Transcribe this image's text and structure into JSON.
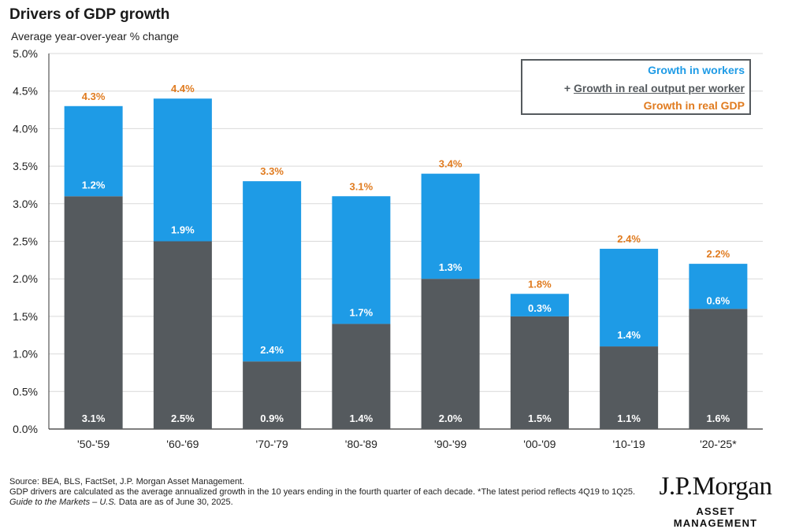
{
  "title": "Drivers of GDP growth",
  "subtitle": "Average year-over-year % change",
  "colors": {
    "workers": "#1e9be6",
    "output": "#555a5e",
    "gdp": "#e07b1f",
    "grid": "#d9d9d9"
  },
  "legend": {
    "workers": "Growth in workers",
    "output_prefix": "+ ",
    "output": "Growth in real output per worker",
    "gdp": "Growth in real GDP"
  },
  "chart_data": {
    "type": "bar",
    "stacked": true,
    "categories": [
      "'50-'59",
      "'60-'69",
      "'70-'79",
      "'80-'89",
      "'90-'99",
      "'00-'09",
      "'10-'19",
      "'20-'25*"
    ],
    "series": [
      {
        "name": "Growth in real output per worker",
        "values": [
          3.1,
          2.5,
          0.9,
          1.4,
          2.0,
          1.5,
          1.1,
          1.6
        ],
        "labels": [
          "3.1%",
          "2.5%",
          "0.9%",
          "1.4%",
          "2.0%",
          "1.5%",
          "1.1%",
          "1.6%"
        ]
      },
      {
        "name": "Growth in workers",
        "values": [
          1.2,
          1.9,
          2.4,
          1.7,
          1.3,
          0.3,
          1.4,
          0.6
        ],
        "labels": [
          "1.2%",
          "1.9%",
          "2.4%",
          "1.7%",
          "1.3%",
          "0.3%",
          "1.4%",
          "0.6%"
        ]
      }
    ],
    "totals": [
      4.3,
      4.4,
      3.3,
      3.1,
      3.4,
      1.8,
      2.4,
      2.2
    ],
    "total_labels": [
      "4.3%",
      "4.4%",
      "3.3%",
      "3.1%",
      "3.4%",
      "1.8%",
      "2.4%",
      "2.2%"
    ],
    "ylim": [
      0,
      5.0
    ],
    "yticks": [
      0,
      0.5,
      1.0,
      1.5,
      2.0,
      2.5,
      3.0,
      3.5,
      4.0,
      4.5,
      5.0
    ],
    "ytick_labels": [
      "0.0%",
      "0.5%",
      "1.0%",
      "1.5%",
      "2.0%",
      "2.5%",
      "3.0%",
      "3.5%",
      "4.0%",
      "4.5%",
      "5.0%"
    ],
    "grid": true,
    "legend_position": "top-right"
  },
  "footnote": {
    "line1": "Source: BEA, BLS, FactSet, J.P. Morgan Asset Management.",
    "line2": "GDP drivers are calculated as the average annualized growth in the 10 years ending in the fourth quarter of each decade. *The latest period reflects 4Q19 to 1Q25.",
    "guide": "Guide to the Markets – U.S.",
    "date": " Data are as of June 30, 2025."
  },
  "logo": {
    "brand": "J.P.Morgan",
    "division": "ASSET MANAGEMENT"
  }
}
